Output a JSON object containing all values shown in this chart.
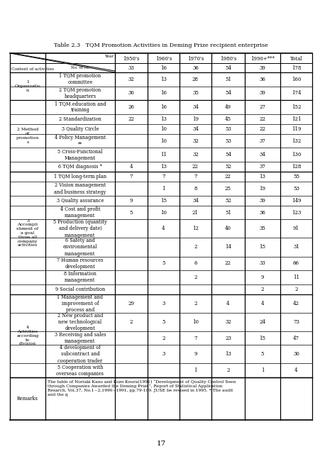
{
  "title": "Table 2.3   TQM Promotion Activities in Deming Prize recipient enterprise",
  "page_number": "17",
  "col_headers": [
    "1950's",
    "1960's",
    "1970's",
    "1980's",
    "1990+***",
    "Total"
  ],
  "no_of_cos": [
    "33",
    "16",
    "36",
    "54",
    "39",
    "178"
  ],
  "sections": [
    {
      "section_label": "1\nOrganizatio\nn",
      "rows": [
        {
          "activity": "1 TQM promotion\ncommittee",
          "values": [
            "32",
            "13",
            "28",
            "51",
            "36",
            "160"
          ]
        },
        {
          "activity": "2 TQM promotion\nheadquarters",
          "values": [
            "30",
            "16",
            "35",
            "54",
            "39",
            "174"
          ]
        }
      ]
    },
    {
      "section_label": "2 Method\nof\npromotion\ns",
      "rows": [
        {
          "activity": "1 TQM education and\ntraining",
          "values": [
            "26",
            "16",
            "34",
            "49",
            "27",
            "152"
          ]
        },
        {
          "activity": "2 Standardization",
          "values": [
            "22",
            "13",
            "19",
            "45",
            "22",
            "121"
          ]
        },
        {
          "activity": "3 Quality Circle",
          "values": [
            "",
            "10",
            "34",
            "53",
            "22",
            "119"
          ]
        },
        {
          "activity": "4 Policy Management\n**",
          "values": [
            "",
            "10",
            "32",
            "53",
            "37",
            "132"
          ]
        },
        {
          "activity": "5 Cross-Functional\nManagement",
          "values": [
            "",
            "11",
            "32",
            "54",
            "34",
            "130"
          ]
        },
        {
          "activity": "6 TQM diagnosis *",
          "values": [
            "4",
            "13",
            "22",
            "52",
            "37",
            "128"
          ]
        }
      ]
    },
    {
      "section_label": "3\nAccompli\nshment of\na goal\nthree all\ncompany\nactivities",
      "rows": [
        {
          "activity": "1 TQM long-term plan",
          "values": [
            "7",
            "7",
            "7",
            "22",
            "13",
            "55"
          ]
        },
        {
          "activity": "2 Vision management\nand business strategy",
          "values": [
            "",
            "1",
            "8",
            "25",
            "19",
            "53"
          ]
        },
        {
          "activity": "3 Quality assurance",
          "values": [
            "9",
            "15",
            "34",
            "52",
            "39",
            "149"
          ]
        },
        {
          "activity": "4 Cost and profit\nmanagement",
          "values": [
            "5",
            "10",
            "21",
            "51",
            "36",
            "123"
          ]
        },
        {
          "activity": "5 Production (quantity\nand delivery date)\nmanagement",
          "values": [
            "",
            "4",
            "12",
            "40",
            "35",
            "91"
          ]
        },
        {
          "activity": "6 Safety and\nenvironmental\nmanagement",
          "values": [
            "",
            "",
            "2",
            "14",
            "15",
            "31"
          ]
        },
        {
          "activity": "7 Human resources\ndevelopment",
          "values": [
            "",
            "5",
            "6",
            "22",
            "33",
            "66"
          ]
        },
        {
          "activity": "8 Information\nmanagement",
          "values": [
            "",
            "",
            "2",
            "",
            "9",
            "11"
          ]
        },
        {
          "activity": "9 Social contribution",
          "values": [
            "",
            "",
            "",
            "",
            "2",
            "2"
          ]
        }
      ]
    },
    {
      "section_label": "4\nActivities\naccording\nto\ndivision",
      "rows": [
        {
          "activity": "1 Management and\nimprovement of\nprocess and",
          "values": [
            "29",
            "3",
            "2",
            "4",
            "4",
            "42"
          ]
        },
        {
          "activity": "2 New product and\nnew technological\ndevelopment",
          "values": [
            "2",
            "5",
            "10",
            "32",
            "24",
            "73"
          ]
        },
        {
          "activity": "3 Receiving and sales\nmanagement",
          "values": [
            "",
            "2",
            "7",
            "23",
            "15",
            "47"
          ]
        },
        {
          "activity": "4 development of\nsubcontract and\ncooperation trader",
          "values": [
            "",
            "3",
            "9",
            "13",
            "5",
            "30"
          ]
        },
        {
          "activity": "5 Cooperation with\noverseas companies",
          "values": [
            "",
            "",
            "1",
            "2",
            "1",
            "4"
          ]
        }
      ]
    }
  ],
  "remarks_label": "Remarks",
  "remarks_text": "The table of Noriaki Kano and Kozo Koura(1991) “Development of Quality Control Seen\nthrough Companies Awarded the Deming Prize”, Report of Statistical Application\nResarch, Vol.37, No.1~2,1990~1991, pp.79-109. JUSE be revised in 1995. * The audit\nand the q"
}
